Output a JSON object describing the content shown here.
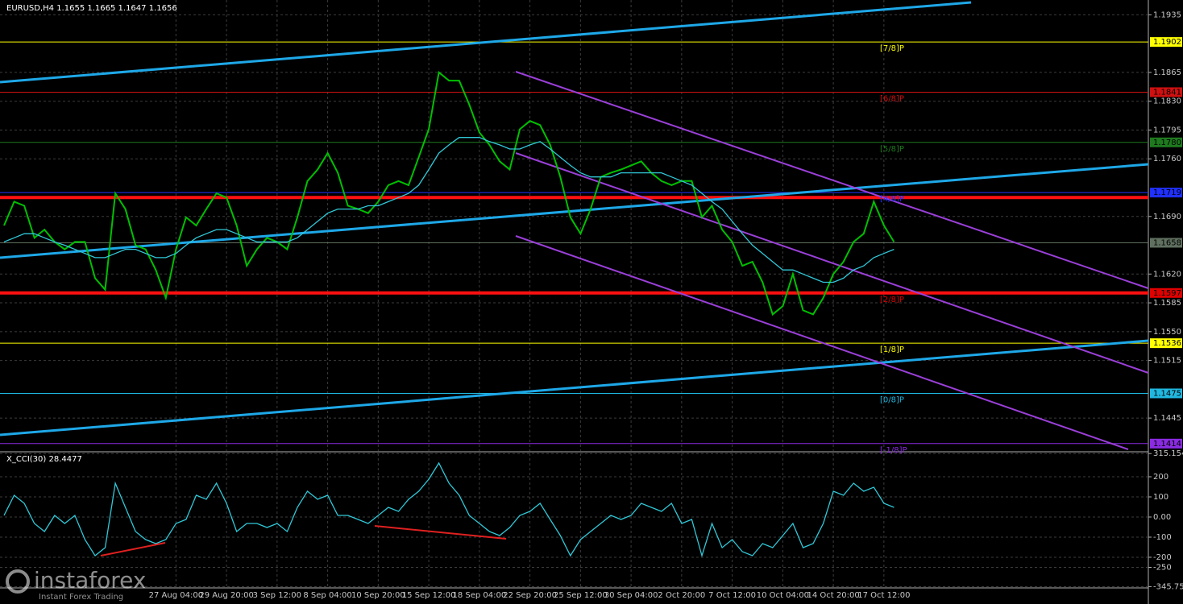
{
  "chart_data": [
    {
      "type": "line",
      "title": "EURUSD,H4  1.1655 1.1665 1.1647 1.1656",
      "categories": [
        null,
        null,
        null,
        null,
        null,
        null,
        null,
        null,
        null,
        null,
        null,
        null,
        null,
        null,
        null,
        null,
        null,
        "27 Aug 04:00",
        null,
        null,
        null,
        null,
        "29 Aug 20:00",
        null,
        null,
        null,
        null,
        "3 Sep 12:00",
        null,
        null,
        null,
        null,
        "8 Sep 04:00",
        null,
        null,
        null,
        null,
        "10 Sep 20:00",
        null,
        null,
        null,
        null,
        "15 Sep 12:00",
        null,
        null,
        null,
        null,
        "18 Sep 04:00",
        null,
        null,
        null,
        null,
        "22 Sep 20:00",
        null,
        null,
        null,
        null,
        "25 Sep 12:00",
        null,
        null,
        null,
        null,
        "30 Sep 04:00",
        null,
        null,
        null,
        null,
        "2 Oct 20:00",
        null,
        null,
        null,
        null,
        "7 Oct 12:00",
        null,
        null,
        null,
        null,
        "10 Oct 04:00",
        null,
        null,
        null,
        null,
        "14 Oct 20:00",
        null,
        null,
        null,
        null,
        "17 Oct 12:00",
        null
      ],
      "series": [
        {
          "color": "#00c000",
          "values": [
            1.1679,
            1.1708,
            1.1703,
            1.1664,
            1.1674,
            1.1659,
            1.165,
            1.1659,
            1.1659,
            1.1615,
            1.1601,
            1.1718,
            1.1699,
            1.1655,
            1.165,
            1.1625,
            1.1591,
            1.165,
            1.1689,
            1.1679,
            1.1699,
            1.1718,
            1.1713,
            1.1679,
            1.163,
            1.165,
            1.1664,
            1.1659,
            1.165,
            1.1689,
            1.1733,
            1.1747,
            1.1767,
            1.1743,
            1.1703,
            1.1699,
            1.1694,
            1.1708,
            1.1728,
            1.1733,
            1.1728,
            1.1762,
            1.1796,
            1.1865,
            1.1855,
            1.1855,
            1.1826,
            1.1792,
            1.1777,
            1.1757,
            1.1747,
            1.1796,
            1.1806,
            1.1801,
            1.1777,
            1.1738,
            1.1689,
            1.1669,
            1.1699,
            1.1738,
            1.1743,
            1.1747,
            1.1752,
            1.1757,
            1.1743,
            1.1733,
            1.1728,
            1.1733,
            1.1733,
            1.1689,
            1.1703,
            1.1674,
            1.1659,
            1.163,
            1.1635,
            1.161,
            1.1571,
            1.1581,
            1.162,
            1.1576,
            1.1571,
            1.1591,
            1.162,
            1.1635,
            1.1659,
            1.1669,
            1.1708,
            1.1679,
            1.1659
          ]
        },
        {
          "color": "#30c8d8",
          "values": [
            1.1659,
            1.1664,
            1.1669,
            1.1669,
            1.1664,
            1.1659,
            1.1655,
            1.165,
            1.1645,
            1.164,
            1.164,
            1.1645,
            1.165,
            1.165,
            1.1645,
            1.164,
            1.164,
            1.1645,
            1.1655,
            1.1664,
            1.1669,
            1.1674,
            1.1674,
            1.1669,
            1.1664,
            1.1659,
            1.1659,
            1.1659,
            1.1659,
            1.1664,
            1.1674,
            1.1684,
            1.1694,
            1.1699,
            1.1699,
            1.1699,
            1.1703,
            1.1703,
            1.1708,
            1.1713,
            1.1718,
            1.1728,
            1.1747,
            1.1767,
            1.1777,
            1.1786,
            1.1786,
            1.1786,
            1.1781,
            1.1777,
            1.1772,
            1.1772,
            1.1777,
            1.1781,
            1.1772,
            1.1762,
            1.1752,
            1.1743,
            1.1738,
            1.1738,
            1.1738,
            1.1743,
            1.1743,
            1.1743,
            1.1743,
            1.1743,
            1.1738,
            1.1733,
            1.1728,
            1.1718,
            1.1708,
            1.1699,
            1.1684,
            1.1669,
            1.1655,
            1.1645,
            1.1635,
            1.1625,
            1.1625,
            1.162,
            1.1615,
            1.161,
            1.161,
            1.1615,
            1.1625,
            1.163,
            1.164,
            1.1645,
            1.165
          ]
        }
      ],
      "ylim": [
        1.1405,
        1.1953
      ],
      "yticks": [
        1.1935,
        1.1865,
        {
          "value": 1.183,
          "label": "1.1830"
        },
        1.1795,
        {
          "value": 1.176,
          "label": "1.1760"
        },
        {
          "value": 1.169,
          "label": "1.1690"
        },
        {
          "value": 1.162,
          "label": "1.1620"
        },
        1.1585,
        {
          "value": 1.155,
          "label": "1.1550"
        },
        1.1515,
        1.1445
      ],
      "grid": true,
      "levels": [
        {
          "value": 1.1902,
          "label": "1.1902",
          "name": "[7/8]P",
          "color": "#ffff00"
        },
        {
          "value": 1.1841,
          "label": "1.1841",
          "name": "[6/8]P",
          "color": "#d01010"
        },
        {
          "value": 1.178,
          "label": "1.1780",
          "name": "[5/8]P",
          "color": "#1f7a1f"
        },
        {
          "value": 1.1719,
          "label": "1.1719",
          "name": "[4/8]P",
          "color": "#2030ff"
        },
        {
          "value": 1.1658,
          "label": "1.1658",
          "color": "#607060"
        },
        {
          "value": 1.1597,
          "label": "1.1597",
          "name": "[2/8]P",
          "color": "#e00000"
        },
        {
          "value": 1.1536,
          "label": "1.1536",
          "name": "[1/8]P",
          "color": "#ffff00"
        },
        {
          "value": 1.1475,
          "label": "1.1475",
          "name": "[0/8]P",
          "color": "#20b8e0"
        },
        {
          "value": 1.1414,
          "label": "1.1414",
          "name": "[-1/8]P",
          "color": "#8a2be2"
        }
      ],
      "sr_lines": [
        1.1713,
        1.1597
      ],
      "sr_color": "#ff1010"
    },
    {
      "type": "line",
      "title": "X_CCI(30) 28.4477",
      "series": [
        {
          "color": "#30c8d8",
          "values": [
            8,
            108,
            68,
            -32,
            -72,
            8,
            -32,
            8,
            -112,
            -192,
            -152,
            168,
            48,
            -72,
            -112,
            -132,
            -112,
            -32,
            -12,
            108,
            88,
            168,
            68,
            -72,
            -32,
            -32,
            -52,
            -32,
            -72,
            48,
            128,
            88,
            108,
            8,
            8,
            -12,
            -32,
            8,
            48,
            28,
            88,
            128,
            188,
            268,
            168,
            108,
            8,
            -32,
            -72,
            -92,
            -52,
            8,
            28,
            68,
            -12,
            -92,
            -192,
            -112,
            -72,
            -32,
            8,
            -12,
            8,
            68,
            48,
            28,
            68,
            -32,
            -12,
            -192,
            -32,
            -152,
            -112,
            -172,
            -192,
            -132,
            -152,
            -92,
            -32,
            -152,
            -132,
            -32,
            128,
            108,
            168,
            128,
            148,
            68,
            48
          ]
        }
      ],
      "ylim": [
        -352,
        316
      ],
      "yticks": [
        315.1542,
        200,
        100,
        {
          "value": 0,
          "label": "0.00"
        },
        -100,
        -200,
        -250,
        -345.7535
      ]
    }
  ],
  "watermark": {
    "brand": "instaforex",
    "tagline": "Instant Forex Trading"
  }
}
